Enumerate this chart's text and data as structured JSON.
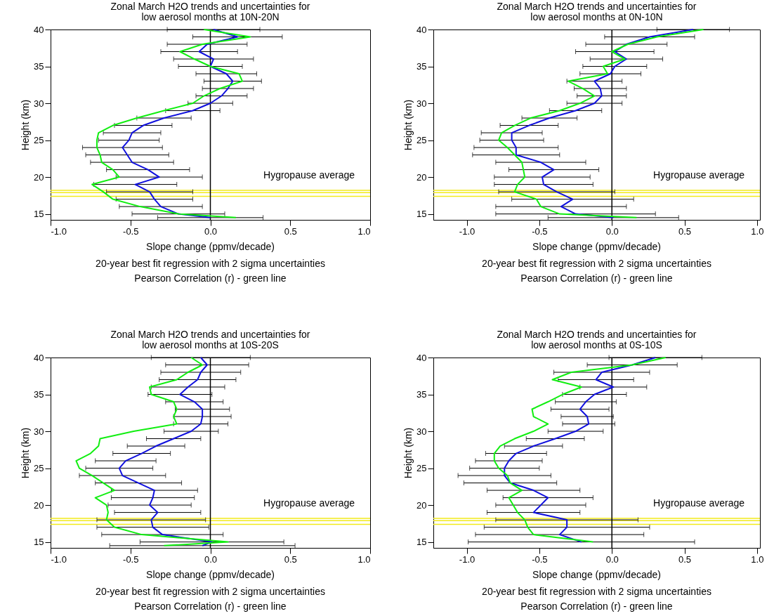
{
  "chart_data": [
    {
      "type": "line",
      "title": "Zonal March H2O trends and uncertainties for",
      "subtitle": "low aerosol months at 10N-20N",
      "xlabel": "Slope change (ppmv/decade)",
      "ylabel": "Height (km)",
      "annotations": [
        "20-year best fit regression with 2 sigma uncertainties",
        "Pearson Correlation (r) - green line"
      ],
      "xlim": [
        -1,
        1
      ],
      "ylim": [
        14.2,
        40
      ],
      "xticks": [
        {
          "value": -1,
          "label": "-1.0"
        },
        {
          "value": -0.5,
          "label": "-0.5"
        },
        {
          "value": 0,
          "label": "0.0"
        },
        {
          "value": 0.5,
          "label": "0.5"
        },
        {
          "value": 1,
          "label": "1.0"
        }
      ],
      "yticks": [
        15,
        20,
        25,
        30,
        35,
        40
      ],
      "ref_lines": [
        {
          "axis": "y",
          "value": 18.2,
          "color": "#f2ea1a"
        },
        {
          "axis": "y",
          "value": 17.9,
          "color": "#f2ea1a",
          "label": "Hygropause average"
        },
        {
          "axis": "y",
          "value": 17.4,
          "color": "#f2ea1a"
        },
        {
          "axis": "x",
          "value": 0,
          "color": "#000000"
        }
      ],
      "series": [
        {
          "color": "#1010dd",
          "x": [
            0.0,
            -0.2,
            -0.31,
            -0.35,
            -0.38,
            -0.47,
            -0.32,
            -0.39,
            -0.49,
            -0.52,
            -0.55,
            -0.51,
            -0.49,
            -0.42,
            -0.29,
            -0.11,
            0.0,
            0.07,
            0.11,
            0.14,
            0.1,
            0.0,
            0.02,
            -0.07,
            -0.02,
            0.17,
            0.02
          ],
          "values": [
            14.5,
            15,
            16,
            17,
            18,
            19,
            20,
            21,
            22,
            23,
            24,
            25,
            26,
            27,
            28,
            29,
            30,
            31,
            32,
            33,
            34,
            35,
            36,
            37,
            38,
            39,
            40
          ],
          "xerrors": [
            0.33,
            0.29,
            0.26,
            0.24,
            0.27,
            0.26,
            0.27,
            0.26,
            0.26,
            0.26,
            0.25,
            0.19,
            0.18,
            0.18,
            0.17,
            0.17,
            0.14,
            0.16,
            0.16,
            0.18,
            0.19,
            0.2,
            0.25,
            0.24,
            0.25,
            0.28,
            0.29
          ]
        },
        {
          "color": "#11ee11",
          "x": [
            0.16,
            -0.2,
            -0.44,
            -0.61,
            -0.67,
            -0.74,
            -0.57,
            -0.61,
            -0.68,
            -0.69,
            -0.71,
            -0.71,
            -0.7,
            -0.61,
            -0.46,
            -0.29,
            -0.11,
            -0.04,
            0.06,
            0.2,
            0.18,
            0.0,
            -0.1,
            -0.19,
            -0.05,
            0.25,
            -0.04
          ],
          "values": [
            14.5,
            15,
            16,
            17,
            18,
            19,
            20,
            21,
            22,
            23,
            24,
            25,
            26,
            27,
            28,
            29,
            30,
            31,
            32,
            33,
            34,
            35,
            36,
            37,
            38,
            39,
            40
          ]
        }
      ]
    },
    {
      "type": "line",
      "title": "Zonal March H2O trends and uncertainties for",
      "subtitle": "low aerosol months at 0N-10N",
      "xlabel": "Slope change (ppmv/decade)",
      "ylabel": "Height (km)",
      "annotations": [
        "20-year best fit regression with 2 sigma uncertainties",
        "Pearson Correlation (r) - green line"
      ],
      "xlim": [
        -1.23,
        1.02
      ],
      "ylim": [
        14.2,
        40
      ],
      "xticks": [
        {
          "value": -1,
          "label": "-1.0"
        },
        {
          "value": -0.5,
          "label": "-0.5"
        },
        {
          "value": 0,
          "label": "0.0"
        },
        {
          "value": 0.5,
          "label": "0.5"
        },
        {
          "value": 1,
          "label": "1.0"
        }
      ],
      "yticks": [
        15,
        20,
        25,
        30,
        35,
        40
      ],
      "ref_lines": [
        {
          "axis": "y",
          "value": 18.2,
          "color": "#f2ea1a"
        },
        {
          "axis": "y",
          "value": 17.9,
          "color": "#f2ea1a",
          "label": "Hygropause average"
        },
        {
          "axis": "y",
          "value": 17.4,
          "color": "#f2ea1a"
        },
        {
          "axis": "x",
          "value": 0,
          "color": "#000000"
        }
      ],
      "series": [
        {
          "color": "#1010dd",
          "x": [
            0.01,
            -0.25,
            -0.35,
            -0.27,
            -0.38,
            -0.47,
            -0.48,
            -0.4,
            -0.49,
            -0.66,
            -0.66,
            -0.69,
            -0.69,
            -0.57,
            -0.43,
            -0.25,
            -0.12,
            -0.07,
            -0.08,
            -0.12,
            -0.01,
            0.02,
            0.1,
            0.02,
            0.1,
            0.26,
            0.56
          ],
          "values": [
            14.5,
            15,
            16,
            17,
            18,
            19,
            20,
            21,
            22,
            23,
            24,
            25,
            26,
            27,
            28,
            29,
            30,
            31,
            32,
            33,
            34,
            35,
            36,
            37,
            38,
            39,
            40
          ],
          "xerrors": [
            0.45,
            0.55,
            0.45,
            0.42,
            0.4,
            0.34,
            0.33,
            0.31,
            0.31,
            0.3,
            0.29,
            0.22,
            0.21,
            0.2,
            0.19,
            0.18,
            0.19,
            0.17,
            0.18,
            0.19,
            0.21,
            0.22,
            0.25,
            0.27,
            0.28,
            0.31,
            0.25
          ]
        },
        {
          "color": "#11ee11",
          "x": [
            0.17,
            -0.36,
            -0.49,
            -0.52,
            -0.67,
            -0.65,
            -0.6,
            -0.61,
            -0.62,
            -0.67,
            -0.72,
            -0.78,
            -0.76,
            -0.67,
            -0.56,
            -0.36,
            -0.22,
            -0.12,
            -0.2,
            -0.3,
            -0.03,
            -0.06,
            0.09,
            0.0,
            0.11,
            0.31,
            0.63
          ],
          "values": [
            14.5,
            15,
            16,
            17,
            18,
            19,
            20,
            21,
            22,
            23,
            24,
            25,
            26,
            27,
            28,
            29,
            30,
            31,
            32,
            33,
            34,
            35,
            36,
            37,
            38,
            39,
            40
          ]
        }
      ]
    },
    {
      "type": "line",
      "title": "Zonal March H2O trends and uncertainties for",
      "subtitle": "low aerosol months at 10S-20S",
      "xlabel": "Slope change (ppmv/decade)",
      "ylabel": "Height (km)",
      "annotations": [
        "20-year best fit regression with 2 sigma uncertainties",
        "Pearson Correlation (r) - green line"
      ],
      "xlim": [
        -1,
        1
      ],
      "ylim": [
        14.2,
        40
      ],
      "xticks": [
        {
          "value": -1,
          "label": "-1.0"
        },
        {
          "value": -0.5,
          "label": "-0.5"
        },
        {
          "value": 0,
          "label": "0.0"
        },
        {
          "value": 0.5,
          "label": "0.5"
        },
        {
          "value": 1,
          "label": "1.0"
        }
      ],
      "yticks": [
        15,
        20,
        25,
        30,
        35,
        40
      ],
      "ref_lines": [
        {
          "axis": "y",
          "value": 18.2,
          "color": "#f2ea1a"
        },
        {
          "axis": "y",
          "value": 17.9,
          "color": "#f2ea1a",
          "label": "Hygropause average"
        },
        {
          "axis": "y",
          "value": 17.4,
          "color": "#f2ea1a"
        },
        {
          "axis": "x",
          "value": 0,
          "color": "#000000"
        }
      ],
      "series": [
        {
          "color": "#1010dd",
          "x": [
            -0.05,
            0.01,
            -0.3,
            -0.36,
            -0.37,
            -0.33,
            -0.38,
            -0.36,
            -0.35,
            -0.45,
            -0.55,
            -0.57,
            -0.53,
            -0.43,
            -0.34,
            -0.23,
            -0.12,
            -0.06,
            -0.05,
            -0.05,
            -0.1,
            -0.19,
            -0.14,
            -0.08,
            -0.06,
            -0.02,
            -0.06
          ],
          "values": [
            14.5,
            15,
            16,
            17,
            18,
            19,
            20,
            21,
            22,
            23,
            24,
            25,
            26,
            27,
            28,
            29,
            30,
            31,
            32,
            33,
            34,
            35,
            36,
            37,
            38,
            39,
            40
          ],
          "xerrors": [
            0.58,
            0.45,
            0.38,
            0.35,
            0.34,
            0.27,
            0.26,
            0.26,
            0.27,
            0.27,
            0.27,
            0.21,
            0.19,
            0.18,
            0.18,
            0.17,
            0.17,
            0.17,
            0.18,
            0.17,
            0.18,
            0.2,
            0.23,
            0.24,
            0.25,
            0.26,
            0.31
          ]
        },
        {
          "color": "#11ee11",
          "x": [
            -0.29,
            0.11,
            -0.43,
            -0.6,
            -0.65,
            -0.64,
            -0.65,
            -0.72,
            -0.6,
            -0.67,
            -0.74,
            -0.82,
            -0.84,
            -0.75,
            -0.7,
            -0.69,
            -0.48,
            -0.21,
            -0.23,
            -0.21,
            -0.23,
            -0.37,
            -0.38,
            -0.21,
            -0.14,
            -0.05,
            -0.12
          ],
          "values": [
            14.5,
            15,
            16,
            17,
            18,
            19,
            20,
            21,
            22,
            23,
            24,
            25,
            26,
            27,
            28,
            29,
            30,
            31,
            32,
            33,
            34,
            35,
            36,
            37,
            38,
            39,
            40
          ]
        }
      ]
    },
    {
      "type": "line",
      "title": "Zonal March H2O trends and uncertainties for",
      "subtitle": "low aerosol months at 0S-10S",
      "xlabel": "Slope change (ppmv/decade)",
      "ylabel": "Height (km)",
      "annotations": [
        "20-year best fit regression with 2 sigma uncertainties",
        "Pearson Correlation (r) - green line"
      ],
      "xlim": [
        -1.23,
        1.02
      ],
      "ylim": [
        14.2,
        40
      ],
      "xticks": [
        {
          "value": -1,
          "label": "-1.0"
        },
        {
          "value": -0.5,
          "label": "-0.5"
        },
        {
          "value": 0,
          "label": "0.0"
        },
        {
          "value": 0.5,
          "label": "0.5"
        },
        {
          "value": 1,
          "label": "1.0"
        }
      ],
      "yticks": [
        15,
        20,
        25,
        30,
        35,
        40
      ],
      "ref_lines": [
        {
          "axis": "y",
          "value": 18.2,
          "color": "#f2ea1a"
        },
        {
          "axis": "y",
          "value": 17.9,
          "color": "#f2ea1a",
          "label": "Hygropause average"
        },
        {
          "axis": "y",
          "value": 17.4,
          "color": "#f2ea1a"
        },
        {
          "axis": "x",
          "value": 0,
          "color": "#000000"
        }
      ],
      "series": [
        {
          "color": "#1010dd",
          "x": [
            -0.21,
            -0.36,
            -0.31,
            -0.31,
            -0.54,
            -0.49,
            -0.44,
            -0.54,
            -0.7,
            -0.74,
            -0.74,
            -0.71,
            -0.66,
            -0.54,
            -0.39,
            -0.25,
            -0.16,
            -0.17,
            -0.22,
            -0.18,
            -0.12,
            0.01,
            -0.11,
            -0.07,
            0.14,
            0.3
          ],
          "values": [
            15,
            16,
            17,
            18,
            19,
            20,
            21,
            22,
            23,
            24,
            25,
            26,
            27,
            28,
            29,
            30,
            31,
            32,
            33,
            34,
            35,
            36,
            37,
            38,
            39,
            40
          ],
          "xerrors": [
            0.78,
            0.58,
            0.57,
            0.49,
            0.32,
            0.31,
            0.31,
            0.32,
            0.32,
            0.32,
            0.24,
            0.23,
            0.21,
            0.2,
            0.2,
            0.19,
            0.18,
            0.18,
            0.2,
            0.21,
            0.22,
            0.23,
            0.26,
            0.33,
            0.31,
            0.32
          ]
        },
        {
          "color": "#11ee11",
          "x": [
            -0.13,
            -0.54,
            -0.58,
            -0.6,
            -0.65,
            -0.68,
            -0.71,
            -0.62,
            -0.7,
            -0.72,
            -0.78,
            -0.81,
            -0.81,
            -0.77,
            -0.67,
            -0.54,
            -0.44,
            -0.54,
            -0.55,
            -0.44,
            -0.34,
            -0.21,
            -0.41,
            -0.28,
            0.14,
            0.37
          ],
          "values": [
            15,
            16,
            17,
            18,
            19,
            20,
            21,
            22,
            23,
            24,
            25,
            26,
            27,
            28,
            29,
            30,
            31,
            32,
            33,
            34,
            35,
            36,
            37,
            38,
            39,
            40
          ]
        }
      ]
    }
  ]
}
